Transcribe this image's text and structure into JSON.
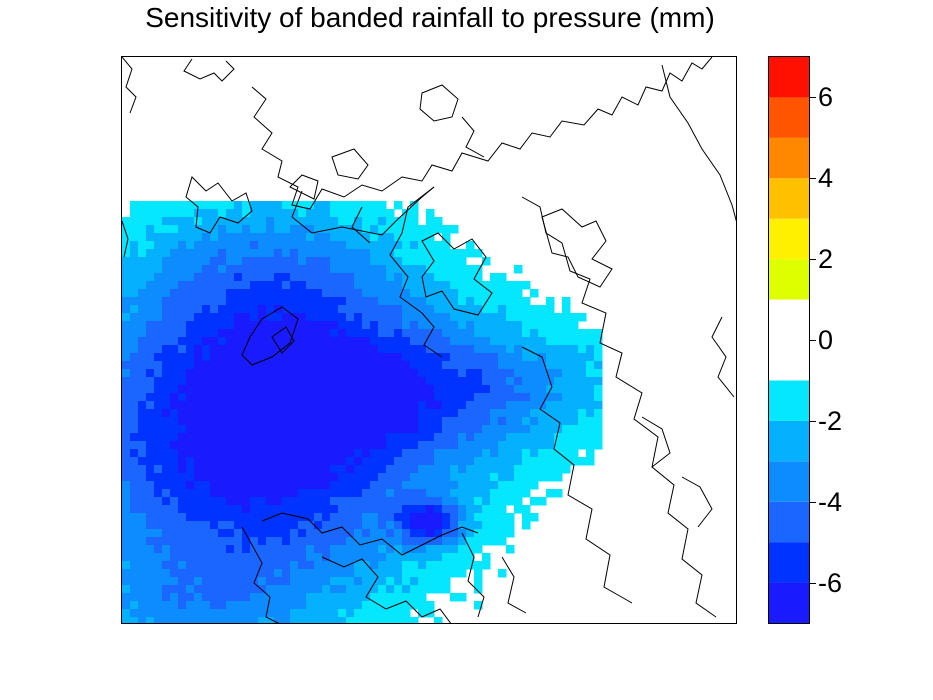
{
  "chart_data": {
    "type": "heatmap",
    "title": "Sensitivity of banded rainfall to pressure (mm)",
    "xlabel": "",
    "ylabel": "",
    "colorbar": {
      "range": [
        -7,
        7
      ],
      "ticks": [
        "-6",
        "-4",
        "-2",
        "0",
        "2",
        "4",
        "6"
      ],
      "tick_values": [
        -6,
        -4,
        -2,
        0,
        2,
        4,
        6
      ],
      "levels": [
        {
          "min": -7,
          "max": -6,
          "color": "#1a1aff"
        },
        {
          "min": -6,
          "max": -5,
          "color": "#0033ff"
        },
        {
          "min": -5,
          "max": -4,
          "color": "#1a66ff"
        },
        {
          "min": -4,
          "max": -3,
          "color": "#0d8cff"
        },
        {
          "min": -3,
          "max": -2,
          "color": "#05b0ff"
        },
        {
          "min": -2,
          "max": -1,
          "color": "#05e6ff"
        },
        {
          "min": -1,
          "max": 1,
          "color": "#ffffff"
        },
        {
          "min": 1,
          "max": 2,
          "color": "#ddff00"
        },
        {
          "min": 2,
          "max": 3,
          "color": "#fff000"
        },
        {
          "min": 3,
          "max": 4,
          "color": "#ffc000"
        },
        {
          "min": 4,
          "max": 5,
          "color": "#ff8800"
        },
        {
          "min": 5,
          "max": 6,
          "color": "#ff5500"
        },
        {
          "min": 6,
          "max": 7,
          "color": "#ff1000"
        }
      ]
    },
    "field_description_levels": [
      -6,
      -5,
      -4,
      -3,
      -2,
      -1
    ],
    "colors": {
      "contour_line": "#000000",
      "background": "#ffffff"
    }
  }
}
